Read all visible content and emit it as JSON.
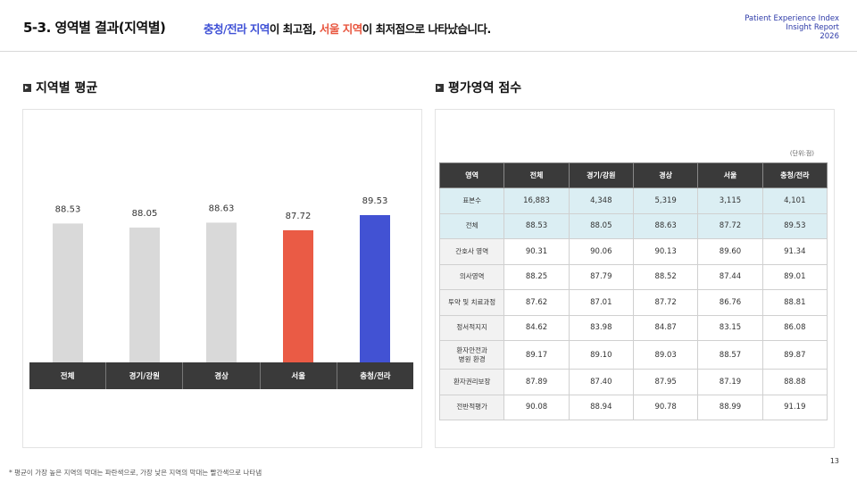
{
  "header": {
    "title": "5-3. 영역별 결과(지역별)",
    "subtitle_part1": "충청/전라 지역",
    "subtitle_part2": "이 최고점, ",
    "subtitle_part3": "서울 지역",
    "subtitle_part4": "이 최저점으로 나타났습니다.",
    "brand_line1": "Patient Experience Index",
    "brand_line2": "Insight Report",
    "brand_line3": "2026"
  },
  "left_section": {
    "title": "지역별 평균"
  },
  "right_section": {
    "title": "평가영역 점수",
    "unit": "(단위:점)"
  },
  "chart_data": {
    "type": "bar",
    "categories": [
      "전체",
      "경기/강원",
      "경상",
      "서울",
      "충청/전라"
    ],
    "values": [
      88.53,
      88.05,
      88.63,
      87.72,
      89.53
    ],
    "labels": [
      "88.53",
      "88.05",
      "88.63",
      "87.72",
      "89.53"
    ],
    "colors": [
      "#d9d9d9",
      "#d9d9d9",
      "#d9d9d9",
      "#ea5b45",
      "#4252d3"
    ],
    "title": "",
    "xlabel": "",
    "ylabel": ""
  },
  "table": {
    "headers": [
      "영역",
      "전체",
      "경기/강원",
      "경상",
      "서울",
      "충청/전라"
    ],
    "rows": [
      {
        "label": "표본수",
        "values": [
          "16,883",
          "4,348",
          "5,319",
          "3,115",
          "4,101"
        ]
      },
      {
        "label": "전체",
        "values": [
          "88.53",
          "88.05",
          "88.63",
          "87.72",
          "89.53"
        ]
      },
      {
        "label": "간호사 영역",
        "values": [
          "90.31",
          "90.06",
          "90.13",
          "89.60",
          "91.34"
        ]
      },
      {
        "label": "의사영역",
        "values": [
          "88.25",
          "87.79",
          "88.52",
          "87.44",
          "89.01"
        ]
      },
      {
        "label": "투약 및 치료과정",
        "values": [
          "87.62",
          "87.01",
          "87.72",
          "86.76",
          "88.81"
        ]
      },
      {
        "label": "정서적지지",
        "values": [
          "84.62",
          "83.98",
          "84.87",
          "83.15",
          "86.08"
        ]
      },
      {
        "label": "환자안전과",
        "label2": "병원 환경",
        "values": [
          "89.17",
          "89.10",
          "89.03",
          "88.57",
          "89.87"
        ]
      },
      {
        "label": "환자권리보장",
        "values": [
          "87.89",
          "87.40",
          "87.95",
          "87.19",
          "88.88"
        ]
      },
      {
        "label": "전반적평가",
        "values": [
          "90.08",
          "88.94",
          "90.78",
          "88.99",
          "91.19"
        ]
      }
    ]
  },
  "footnote": "* 평균이 가장 높은 지역의 막대는 파란색으로, 가장 낮은 지역의 막대는 빨간색으로 나타냄",
  "page_number": "13"
}
